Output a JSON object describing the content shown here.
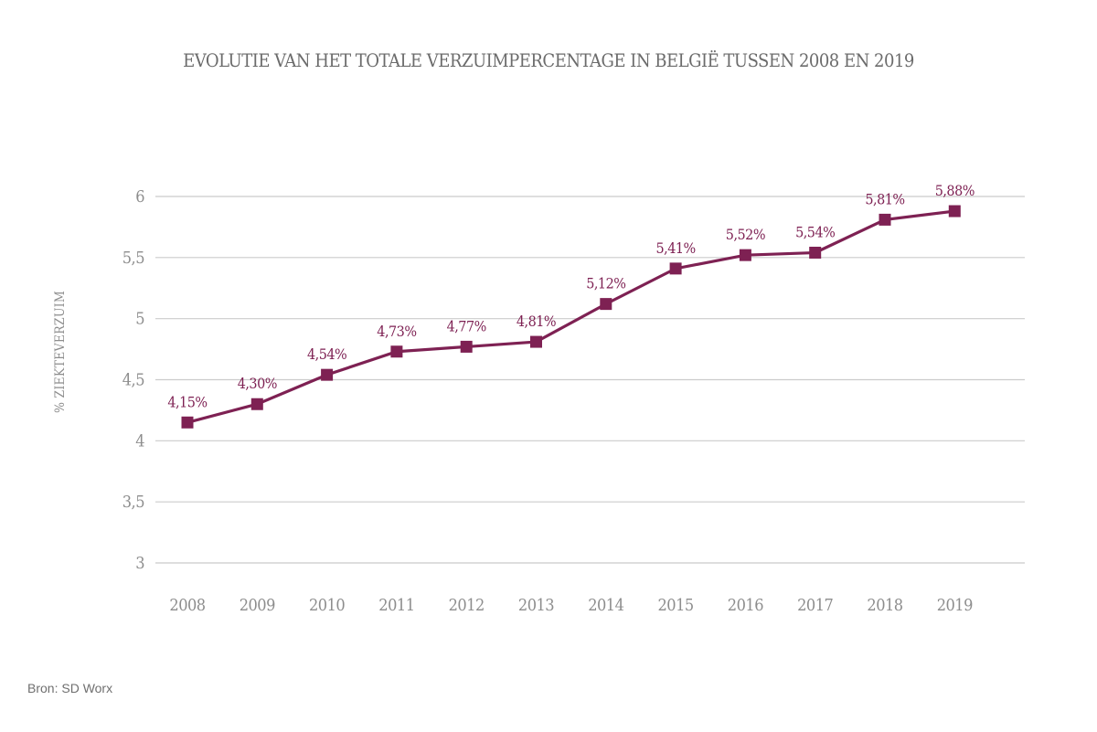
{
  "chart_data": {
    "type": "line",
    "title": "EVOLUTIE VAN HET TOTALE VERZUIMPERCENTAGE IN BELGIË TUSSEN 2008 EN 2019",
    "ylabel": "% ZIEKTEVERZUIM",
    "xlabel": "",
    "categories": [
      "2008",
      "2009",
      "2010",
      "2011",
      "2012",
      "2013",
      "2014",
      "2015",
      "2016",
      "2017",
      "2018",
      "2019"
    ],
    "values": [
      4.15,
      4.3,
      4.54,
      4.73,
      4.77,
      4.81,
      5.12,
      5.41,
      5.52,
      5.54,
      5.81,
      5.88
    ],
    "point_labels": [
      "4,15%",
      "4,30%",
      "4,54%",
      "4,73%",
      "4,77%",
      "4,81%",
      "5,12%",
      "5,41%",
      "5,52%",
      "5,54%",
      "5,81%",
      "5,88%"
    ],
    "ylim": [
      3,
      6
    ],
    "yticks": [
      3,
      3.5,
      4,
      4.5,
      5,
      5.5,
      6
    ],
    "ytick_labels": [
      "3",
      "3,5",
      "4",
      "4,5",
      "5",
      "5,5",
      "6"
    ],
    "grid": "horizontal",
    "legend": "none",
    "marker": "square",
    "colors": {
      "line": "#7e2153",
      "marker": "#7e2153",
      "point_label": "#7e2153",
      "grid": "#cbcbcb",
      "axis_text": "#8d8d8d",
      "title": "#6b6b6b",
      "source_text": "#6f6f6f",
      "background": "#ffffff"
    }
  },
  "source": "Bron: SD Worx"
}
